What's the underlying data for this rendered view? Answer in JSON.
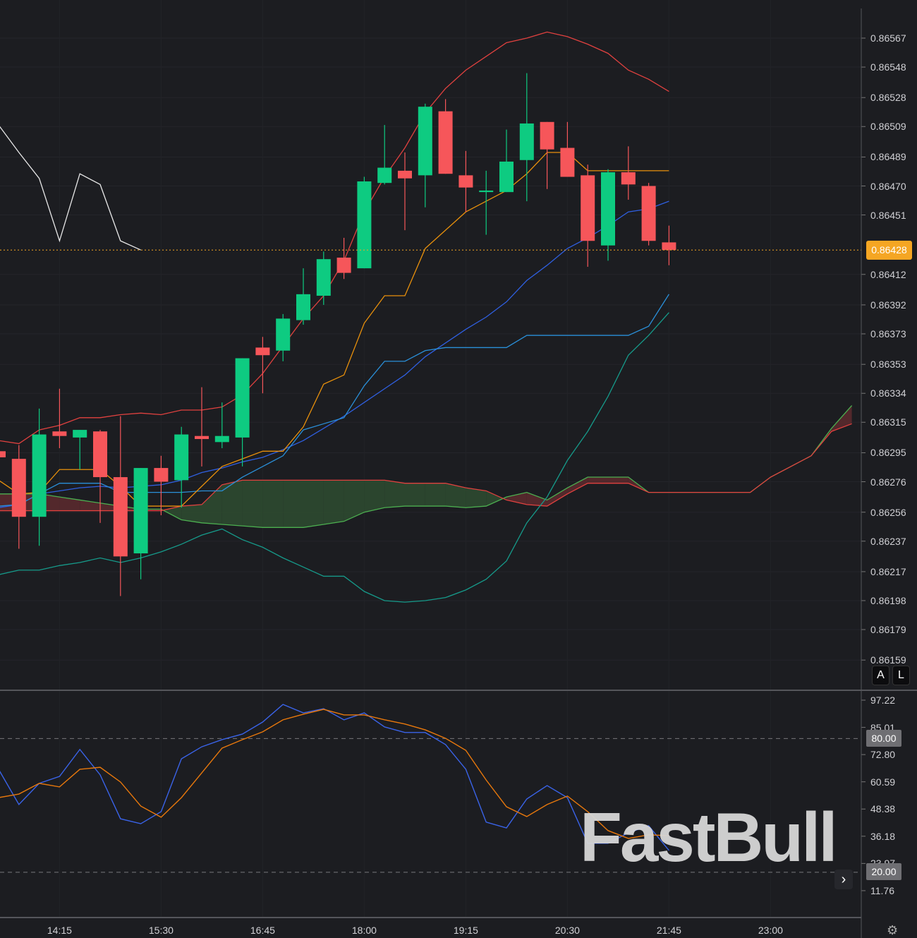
{
  "chart_data": [
    {
      "type": "candlestick",
      "pane": "price",
      "x_tick_labels": [
        {
          "index": 3,
          "label": "14:15"
        },
        {
          "index": 8,
          "label": "15:30"
        },
        {
          "index": 13,
          "label": "16:45"
        },
        {
          "index": 18,
          "label": "18:00"
        },
        {
          "index": 23,
          "label": "19:15"
        },
        {
          "index": 28,
          "label": "20:30"
        },
        {
          "index": 33,
          "label": "21:45"
        },
        {
          "index": 38,
          "label": "23:00"
        }
      ],
      "interval_minutes": 15,
      "y_tick_labels": [
        "0.86567",
        "0.86548",
        "0.86528",
        "0.86509",
        "0.86489",
        "0.86470",
        "0.86451",
        "0.86412",
        "0.86392",
        "0.86373",
        "0.86353",
        "0.86334",
        "0.86315",
        "0.86295",
        "0.86276",
        "0.86256",
        "0.86237",
        "0.86217",
        "0.86198",
        "0.86179",
        "0.86159"
      ],
      "ylim": [
        0.86155,
        0.8658
      ],
      "last_price": "0.86428",
      "colors": {
        "up": "#0ecb81",
        "down": "#f6565a",
        "last_price": "#f5a623"
      },
      "candles": [
        [
          0.86296,
          0.86297,
          0.86291,
          0.86292
        ],
        [
          0.86291,
          0.863,
          0.86232,
          0.86253
        ],
        [
          0.86253,
          0.86324,
          0.86234,
          0.86307
        ],
        [
          0.86309,
          0.86337,
          0.86298,
          0.86306
        ],
        [
          0.86305,
          0.8631,
          0.86284,
          0.8631
        ],
        [
          0.86309,
          0.8631,
          0.86249,
          0.86279
        ],
        [
          0.86279,
          0.86319,
          0.86201,
          0.86227
        ],
        [
          0.86229,
          0.86285,
          0.86212,
          0.86285
        ],
        [
          0.86285,
          0.86293,
          0.86254,
          0.86276
        ],
        [
          0.86277,
          0.86312,
          0.86259,
          0.86307
        ],
        [
          0.86306,
          0.86338,
          0.86286,
          0.86304
        ],
        [
          0.86302,
          0.86328,
          0.86298,
          0.86306
        ],
        [
          0.86305,
          0.86357,
          0.86286,
          0.86357
        ],
        [
          0.86364,
          0.86371,
          0.86334,
          0.86359
        ],
        [
          0.86362,
          0.86386,
          0.86355,
          0.86383
        ],
        [
          0.86382,
          0.86416,
          0.86379,
          0.86399
        ],
        [
          0.86398,
          0.86427,
          0.86392,
          0.86422
        ],
        [
          0.86423,
          0.86436,
          0.86409,
          0.86413
        ],
        [
          0.86416,
          0.86476,
          0.86416,
          0.86473
        ],
        [
          0.86472,
          0.8651,
          0.86471,
          0.86482
        ],
        [
          0.8648,
          0.86492,
          0.86441,
          0.86475
        ],
        [
          0.86477,
          0.86524,
          0.86456,
          0.86522
        ],
        [
          0.86519,
          0.86527,
          0.86478,
          0.86478
        ],
        [
          0.86477,
          0.86493,
          0.86453,
          0.86469
        ],
        [
          0.86466,
          0.8648,
          0.86438,
          0.86467
        ],
        [
          0.86466,
          0.86507,
          0.86466,
          0.86486
        ],
        [
          0.86487,
          0.86544,
          0.8646,
          0.86511
        ],
        [
          0.86512,
          0.86512,
          0.86468,
          0.86494
        ],
        [
          0.86495,
          0.86512,
          0.86476,
          0.86476
        ],
        [
          0.86477,
          0.86484,
          0.86417,
          0.86434
        ],
        [
          0.86431,
          0.86481,
          0.86421,
          0.86479
        ],
        [
          0.86479,
          0.86496,
          0.86461,
          0.86471
        ],
        [
          0.8647,
          0.86472,
          0.86431,
          0.86434
        ],
        [
          0.86433,
          0.86444,
          0.86418,
          0.86428
        ]
      ],
      "lines": [
        {
          "id": "bb-upper",
          "color": "#e0413f",
          "values": [
            0.86303,
            0.86301,
            0.8631,
            0.86313,
            0.86318,
            0.86318,
            0.8632,
            0.86321,
            0.8632,
            0.86323,
            0.86323,
            0.86325,
            0.86333,
            0.86347,
            0.86365,
            0.86383,
            0.86398,
            0.86421,
            0.86453,
            0.86476,
            0.86495,
            0.86518,
            0.86534,
            0.86546,
            0.86555,
            0.86564,
            0.86567,
            0.86571,
            0.86568,
            0.86563,
            0.86557,
            0.86546,
            0.8654,
            0.86532
          ]
        },
        {
          "id": "bb-lower",
          "color": "#169a8a",
          "values": [
            0.86215,
            0.86218,
            0.86218,
            0.86221,
            0.86223,
            0.86226,
            0.86223,
            0.86226,
            0.8623,
            0.86235,
            0.86241,
            0.86245,
            0.86238,
            0.86233,
            0.86226,
            0.8622,
            0.86214,
            0.86214,
            0.86204,
            0.86198,
            0.86197,
            0.86198,
            0.862,
            0.86205,
            0.86212,
            0.86224,
            0.86249,
            0.86266,
            0.8629,
            0.86309,
            0.86332,
            0.86359,
            0.86372,
            0.86387
          ]
        },
        {
          "id": "bb-middle",
          "color": "#2f5fe0",
          "values": [
            0.86259,
            0.86261,
            0.86268,
            0.8627,
            0.86272,
            0.86273,
            0.86272,
            0.86273,
            0.86274,
            0.86277,
            0.86282,
            0.86285,
            0.86289,
            0.86292,
            0.86297,
            0.86303,
            0.86311,
            0.86319,
            0.86328,
            0.86337,
            0.86346,
            0.86358,
            0.86367,
            0.86376,
            0.86384,
            0.86394,
            0.86408,
            0.86418,
            0.86429,
            0.86436,
            0.86444,
            0.86453,
            0.86455,
            0.8646
          ]
        },
        {
          "id": "kijun",
          "color": "#2a8fd8",
          "values": [
            0.8626,
            0.86261,
            0.86268,
            0.86275,
            0.86275,
            0.86275,
            0.86269,
            0.86269,
            0.86269,
            0.86269,
            0.8627,
            0.8627,
            0.86279,
            0.86286,
            0.86293,
            0.8631,
            0.86314,
            0.86318,
            0.86339,
            0.86355,
            0.86355,
            0.86362,
            0.86364,
            0.86364,
            0.86364,
            0.86364,
            0.86372,
            0.86372,
            0.86372,
            0.86372,
            0.86372,
            0.86372,
            0.86378,
            0.86399
          ]
        },
        {
          "id": "tenkan",
          "color": "#e8900c",
          "values": [
            0.86277,
            0.86268,
            0.86269,
            0.86284,
            0.86284,
            0.86284,
            0.86273,
            0.8626,
            0.8626,
            0.8626,
            0.86273,
            0.86286,
            0.86291,
            0.86296,
            0.86296,
            0.86312,
            0.8634,
            0.86346,
            0.8638,
            0.86398,
            0.86398,
            0.86429,
            0.86441,
            0.86453,
            0.8646,
            0.86467,
            0.86478,
            0.86492,
            0.86492,
            0.8648,
            0.8648,
            0.8648,
            0.8648,
            0.8648
          ]
        },
        {
          "id": "chikou",
          "color": "#e8e8e8",
          "values": [
            0.8651,
            0.86492,
            0.86475,
            0.86434,
            0.86478,
            0.86471,
            0.86434,
            0.86428
          ]
        }
      ],
      "cloud": {
        "span_a_color": "#4caf50",
        "span_b_color": "#e0413f",
        "fill_b_above": "#2d4a30",
        "fill_a_above": "#5a2a2e",
        "span_a": [
          0.86268,
          0.86268,
          0.86268,
          0.86266,
          0.86264,
          0.86262,
          0.8626,
          0.86258,
          0.86258,
          0.86251,
          0.86249,
          0.86248,
          0.86247,
          0.86246,
          0.86246,
          0.86246,
          0.86248,
          0.8625,
          0.86256,
          0.86259,
          0.8626,
          0.8626,
          0.8626,
          0.86259,
          0.8626,
          0.86266,
          0.86269,
          0.86264,
          0.86272,
          0.86279,
          0.86279,
          0.86279,
          0.86269,
          0.86269,
          0.86269,
          0.86269,
          0.86269,
          0.86269,
          0.86279,
          0.86286,
          0.86293,
          0.86311,
          0.86326
        ],
        "span_b": [
          0.86257,
          0.86257,
          0.86257,
          0.86257,
          0.86257,
          0.86257,
          0.86257,
          0.86257,
          0.86257,
          0.8626,
          0.86261,
          0.86274,
          0.86277,
          0.86277,
          0.86277,
          0.86277,
          0.86277,
          0.86277,
          0.86277,
          0.86277,
          0.86275,
          0.86275,
          0.86275,
          0.86272,
          0.8627,
          0.86264,
          0.86261,
          0.8626,
          0.86268,
          0.86275,
          0.86275,
          0.86275,
          0.86269,
          0.86269,
          0.86269,
          0.86269,
          0.86269,
          0.86269,
          0.86279,
          0.86286,
          0.86293,
          0.86309,
          0.86314
        ]
      }
    },
    {
      "type": "line",
      "pane": "stochastic",
      "y_tick_labels": [
        "97.22",
        "85.01",
        "72.80",
        "60.59",
        "48.38",
        "36.18",
        "23.97",
        "11.76"
      ],
      "ylim": [
        5,
        100
      ],
      "levels": [
        "80.00",
        "20.00"
      ],
      "series": [
        {
          "id": "k",
          "color": "#3a63e8",
          "values": [
            66.2,
            50.4,
            59.9,
            63.0,
            75.1,
            63.7,
            44.0,
            41.8,
            47.2,
            70.9,
            76.3,
            79.5,
            82.0,
            87.4,
            95.3,
            91.5,
            93.4,
            88.4,
            91.5,
            85.2,
            82.7,
            82.7,
            77.3,
            66.2,
            42.5,
            39.9,
            52.9,
            58.9,
            53.5,
            33.0,
            33.0,
            37.7,
            40.9,
            29.8
          ]
        },
        {
          "id": "d",
          "color": "#e8780c",
          "values": [
            53.5,
            55.1,
            59.9,
            58.3,
            66.2,
            67.1,
            60.5,
            49.7,
            44.7,
            53.5,
            64.6,
            75.7,
            79.5,
            83.0,
            88.4,
            90.9,
            93.1,
            90.6,
            90.6,
            88.4,
            86.5,
            83.9,
            80.1,
            74.7,
            61.4,
            49.4,
            45.0,
            50.4,
            54.2,
            47.2,
            38.7,
            35.2,
            36.8,
            36.4
          ]
        }
      ]
    }
  ],
  "controls": {
    "auto_label": "A",
    "log_label": "L",
    "scroll_right": "›",
    "settings_icon": "gear-icon"
  },
  "watermark": "FastBull"
}
